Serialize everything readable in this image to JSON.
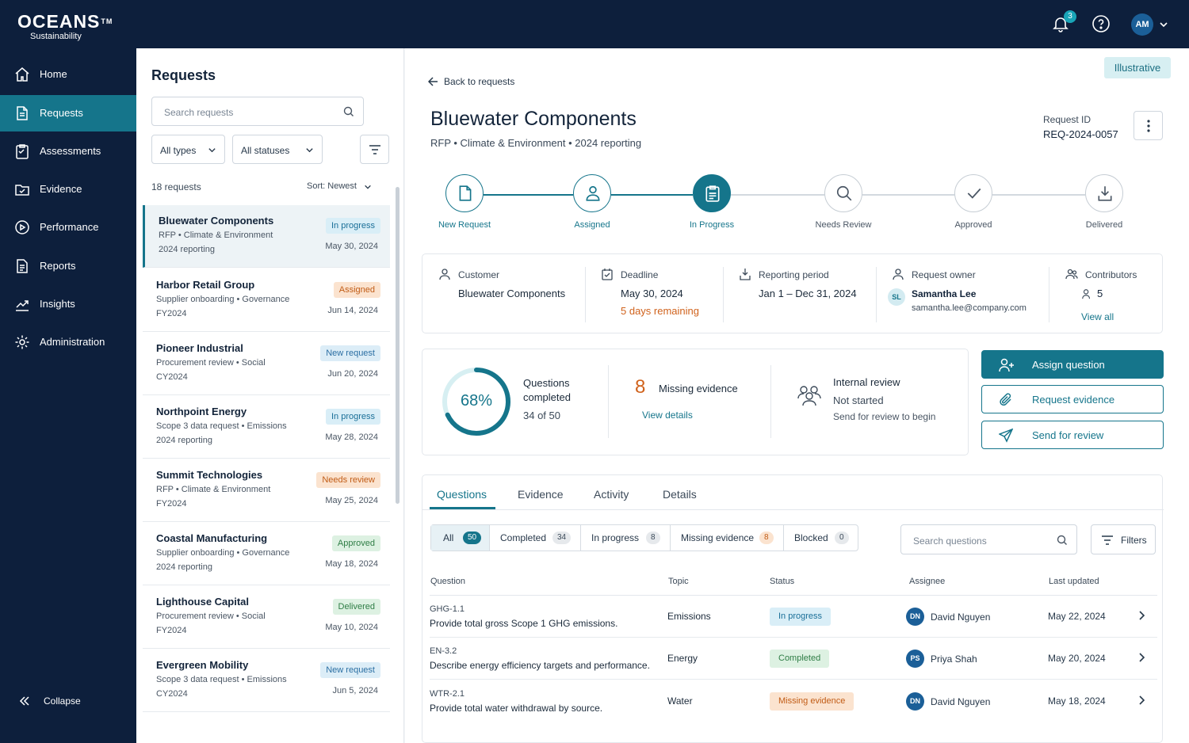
{
  "brand": {
    "name": "OCEANS",
    "tm": "TM",
    "subtitle": "Sustainability"
  },
  "topbar": {
    "notification_count": "3",
    "user_initials": "AM"
  },
  "sidebar": {
    "items": [
      {
        "label": "Home",
        "icon": "home-icon"
      },
      {
        "label": "Requests",
        "icon": "document-icon",
        "active": true
      },
      {
        "label": "Assessments",
        "icon": "clipboard-icon"
      },
      {
        "label": "Evidence",
        "icon": "folder-check-icon"
      },
      {
        "label": "Performance",
        "icon": "target-icon"
      },
      {
        "label": "Reports",
        "icon": "report-icon"
      },
      {
        "label": "Insights",
        "icon": "trend-icon"
      },
      {
        "label": "Administration",
        "icon": "gear-icon"
      }
    ],
    "collapse_label": "Collapse"
  },
  "requests_panel": {
    "title": "Requests",
    "search_placeholder": "Search requests",
    "type_filter": "All types",
    "status_filter": "All statuses",
    "count_label": "18 requests",
    "sort_label": "Sort: Newest",
    "items": [
      {
        "name": "Bluewater Components",
        "meta": "RFP  •  Climate & Environment",
        "year": "2024 reporting",
        "badge": "In progress",
        "date": "May 30, 2024"
      },
      {
        "name": "Harbor Retail Group",
        "meta": "Supplier onboarding  •  Governance",
        "year": "FY2024",
        "badge": "Assigned",
        "date": "Jun 14, 2024"
      },
      {
        "name": "Pioneer Industrial",
        "meta": "Procurement review  •  Social",
        "year": "CY2024",
        "badge": "New request",
        "date": "Jun 20, 2024"
      },
      {
        "name": "Northpoint Energy",
        "meta": "Scope 3 data request  •  Emissions",
        "year": "2024 reporting",
        "badge": "In progress",
        "date": "May 28, 2024"
      },
      {
        "name": "Summit Technologies",
        "meta": "RFP  •  Climate & Environment",
        "year": "FY2024",
        "badge": "Needs review",
        "date": "May 25, 2024"
      },
      {
        "name": "Coastal Manufacturing",
        "meta": "Supplier onboarding  •  Governance",
        "year": "2024 reporting",
        "badge": "Approved",
        "date": "May 18, 2024"
      },
      {
        "name": "Lighthouse Capital",
        "meta": "Procurement review  •  Social",
        "year": "FY2024",
        "badge": "Delivered",
        "date": "May 10, 2024"
      },
      {
        "name": "Evergreen Mobility",
        "meta": "Scope 3 data request  •  Emissions",
        "year": "CY2024",
        "badge": "New request",
        "date": "Jun 5, 2024"
      }
    ]
  },
  "detail": {
    "illustrative_tag": "Illustrative",
    "back_label": "Back to requests",
    "title": "Bluewater Components",
    "subtitle": "RFP  •  Climate & Environment  •  2024 reporting",
    "request_id_label": "Request ID",
    "request_id": "REQ-2024-0057",
    "steps": [
      {
        "label": "New Request",
        "icon": "document-icon",
        "state": "done"
      },
      {
        "label": "Assigned",
        "icon": "user-icon",
        "state": "done"
      },
      {
        "label": "In Progress",
        "icon": "clipboard-icon",
        "state": "current"
      },
      {
        "label": "Needs Review",
        "icon": "search-icon",
        "state": "todo"
      },
      {
        "label": "Approved",
        "icon": "check-icon",
        "state": "todo"
      },
      {
        "label": "Delivered",
        "icon": "download-icon",
        "state": "todo"
      }
    ],
    "info": {
      "customer_label": "Customer",
      "customer": "Bluewater Components",
      "deadline_label": "Deadline",
      "deadline": "May 30, 2024",
      "deadline_note": "5 days remaining",
      "period_label": "Reporting period",
      "period": "Jan 1 – Dec 31, 2024",
      "owner_label": "Request owner",
      "owner_initials": "SL",
      "owner_name": "Samantha Lee",
      "owner_email": "samantha.lee@company.com",
      "contributors_label": "Contributors",
      "contributors_count": "5",
      "view_all": "View all"
    },
    "stats": {
      "completion_pct_label": "68%",
      "completion_fraction": 0.68,
      "questions_label": "Questions completed",
      "questions_of": "34 of 50",
      "missing_count": "8",
      "missing_label": "Missing evidence",
      "missing_link": "View details",
      "review_title": "Internal review",
      "review_status": "Not started",
      "review_hint": "Send for review to begin"
    },
    "actions": {
      "assign": "Assign question",
      "request_evidence": "Request evidence",
      "send_review": "Send for review"
    },
    "tabs": [
      "Questions",
      "Evidence",
      "Activity",
      "Details"
    ],
    "segments": [
      {
        "label": "All",
        "count": "50"
      },
      {
        "label": "Completed",
        "count": "34"
      },
      {
        "label": "In progress",
        "count": "8"
      },
      {
        "label": "Missing evidence",
        "count": "8"
      },
      {
        "label": "Blocked",
        "count": "0"
      }
    ],
    "question_search_placeholder": "Search questions",
    "filters_label": "Filters",
    "table": {
      "headers": {
        "question": "Question",
        "topic": "Topic",
        "status": "Status",
        "assignee": "Assignee",
        "updated": "Last updated"
      },
      "rows": [
        {
          "code": "GHG-1.1",
          "question": "Provide total gross Scope 1 GHG emissions.",
          "topic": "Emissions",
          "status": "In progress",
          "initials": "DN",
          "assignee": "David Nguyen",
          "updated": "May 22, 2024"
        },
        {
          "code": "EN-3.2",
          "question": "Describe energy efficiency targets and performance.",
          "topic": "Energy",
          "status": "Completed",
          "initials": "PS",
          "assignee": "Priya Shah",
          "updated": "May 20, 2024"
        },
        {
          "code": "WTR-2.1",
          "question": "Provide total water withdrawal by source.",
          "topic": "Water",
          "status": "Missing evidence",
          "initials": "DN",
          "assignee": "David Nguyen",
          "updated": "May 18, 2024"
        }
      ]
    }
  }
}
